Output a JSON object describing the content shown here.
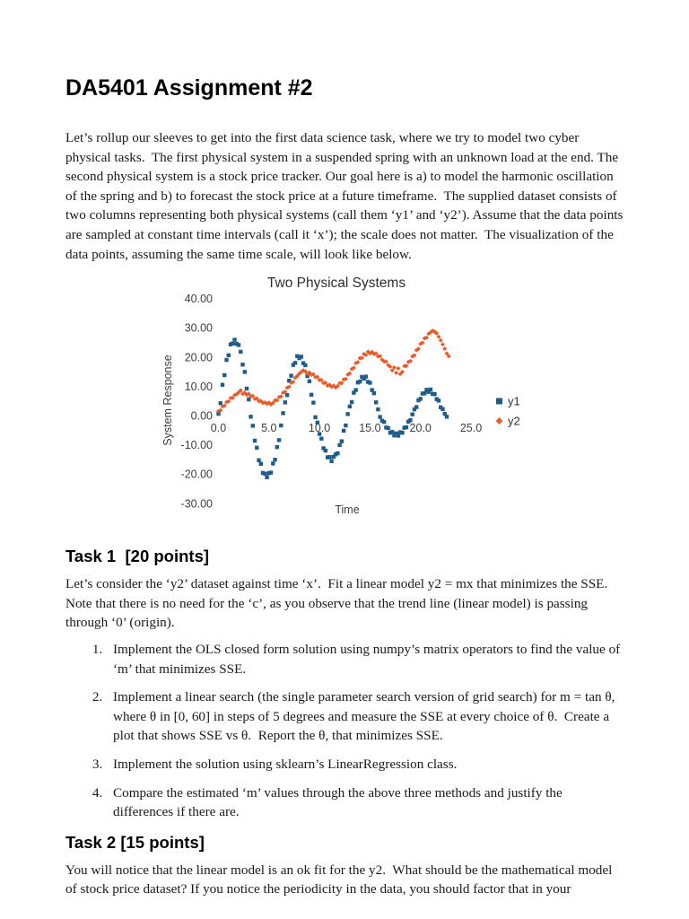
{
  "doc": {
    "title": "DA5401 Assignment #2",
    "intro": "Let’s rollup our sleeves to get into the first data science task, where we try to model two cyber physical tasks.  The first physical system in a suspended spring with an unknown load at the end. The second physical system is a stock price tracker. Our goal here is a) to model the harmonic oscillation of the spring and b) to forecast the stock price at a future timeframe.  The supplied dataset consists of two columns representing both physical systems (call them ‘y1’ and ‘y2’). Assume that the data points are sampled at constant time intervals (call it ‘x’); the scale does not matter.  The visualization of the data points, assuming the same time scale, will look like below.",
    "task1": {
      "heading": "Task 1  [20 points]",
      "intro": "Let’s consider the ‘y2’ dataset against time ‘x’.  Fit a linear model y2 = mx that minimizes the SSE. Note that there is no need for the ‘c’, as you observe that the trend line (linear model) is passing through ‘0’ (origin).",
      "items": [
        "Implement the OLS closed form solution using numpy’s matrix operators to find the value of ‘m’ that minimizes SSE.",
        "Implement a linear search (the single parameter search version of grid search) for m = tan θ, where θ in [0, 60] in steps of 5 degrees and measure the SSE at every choice of θ.  Create a plot that shows SSE vs θ.  Report the θ, that minimizes SSE.",
        "Implement the solution using sklearn’s LinearRegression class.",
        "Compare the estimated ‘m’ values through the above three methods and justify the differences if there are."
      ]
    },
    "task2": {
      "heading": "Task 2 [15 points]",
      "intro": "You will notice that the linear model is an ok fit for the y2.  What should be the mathematical model of stock price dataset? If you notice the periodicity in the data, you should factor that in your"
    }
  },
  "chart_data": {
    "type": "scatter",
    "title": "Two Physical Systems",
    "xlabel": "Time",
    "ylabel": "System Response",
    "xlim": [
      0,
      26
    ],
    "ylim": [
      -30,
      40
    ],
    "grid": false,
    "legend_position": "right",
    "x_ticks": {
      "values": [
        0,
        5,
        10,
        15,
        20,
        25
      ],
      "labels": [
        "0.0",
        "5.0",
        "10.0",
        "15.0",
        "20.0",
        "25.0"
      ]
    },
    "y_ticks": {
      "values": [
        40,
        30,
        20,
        10,
        0,
        -10,
        -20,
        -30
      ],
      "labels": [
        "40.00",
        "30.00",
        "20.00",
        "10.00",
        "0.00",
        "-10.00",
        "-20.00",
        "-30.00"
      ]
    },
    "x_start": 0,
    "x_step": 0.2,
    "series": [
      {
        "name": "y1",
        "color": "#1f5c8a",
        "marker": "square",
        "values": [
          0.6,
          4.2,
          10.5,
          13.8,
          19.0,
          20.6,
          24.3,
          24.6,
          25.9,
          24.5,
          24.1,
          21.8,
          17.4,
          14.9,
          9.2,
          5.5,
          -0.4,
          -3.5,
          -8.6,
          -11.0,
          -15.3,
          -16.5,
          -19.6,
          -19.9,
          -21.1,
          -19.7,
          -19.5,
          -16.4,
          -15.1,
          -10.8,
          -8.4,
          -3.4,
          0.8,
          4.5,
          7.0,
          11.9,
          13.6,
          17.3,
          18.0,
          20.3,
          19.6,
          20.1,
          17.9,
          17.2,
          13.5,
          11.7,
          7.1,
          4.4,
          -0.6,
          -2.4,
          -6.3,
          -7.9,
          -11.2,
          -12.0,
          -14.3,
          -14.2,
          -15.6,
          -14.1,
          -13.3,
          -12.9,
          -10.1,
          -8.8,
          -5.2,
          -3.4,
          0.5,
          3.1,
          4.6,
          7.8,
          8.7,
          11.3,
          11.6,
          13.2,
          12.6,
          13.3,
          11.5,
          11.2,
          8.7,
          7.6,
          4.5,
          2.1,
          -0.5,
          -1.8,
          -2.2,
          -4.1,
          -4.3,
          -5.9,
          -5.6,
          -6.8,
          -6.1,
          -6.9,
          -5.7,
          -5.9,
          -4.2,
          -4.0,
          -2.1,
          -1.6,
          0.4,
          2.1,
          2.9,
          5.2,
          5.7,
          7.5,
          7.6,
          8.8,
          8.1,
          8.9,
          7.4,
          7.3,
          5.6,
          5.1,
          2.8,
          2.2,
          0.6,
          -0.4
        ]
      },
      {
        "name": "y2",
        "color": "#ea5b2b",
        "marker": "diamond",
        "values": [
          1.5,
          1.8,
          3.1,
          3.4,
          4.6,
          4.8,
          6.0,
          6.0,
          7.0,
          7.3,
          7.9,
          8.6,
          7.4,
          7.8,
          7.1,
          7.4,
          6.5,
          6.7,
          5.7,
          5.8,
          4.9,
          5.0,
          4.3,
          4.5,
          4.0,
          4.4,
          3.8,
          4.3,
          5.2,
          5.2,
          6.3,
          6.5,
          7.8,
          8.1,
          9.5,
          9.8,
          11.2,
          11.5,
          12.9,
          13.5,
          14.3,
          14.9,
          15.4,
          15.1,
          14.2,
          14.7,
          13.9,
          14.1,
          13.1,
          13.2,
          12.1,
          12.1,
          11.1,
          11.2,
          10.2,
          10.5,
          9.8,
          10.2,
          9.6,
          10.1,
          11.1,
          11.1,
          12.3,
          12.5,
          14.0,
          14.4,
          15.9,
          16.3,
          17.9,
          18.2,
          19.6,
          19.7,
          21.0,
          20.7,
          21.8,
          21.2,
          21.7,
          21.0,
          21.2,
          20.2,
          20.3,
          19.1,
          18.5,
          18.4,
          17.2,
          16.7,
          15.4,
          16.4,
          14.6,
          16.1,
          14.2,
          14.9,
          16.9,
          17.0,
          18.3,
          18.6,
          20.2,
          20.6,
          22.3,
          22.8,
          24.5,
          24.9,
          26.4,
          26.6,
          27.9,
          28.4,
          29.0,
          28.7,
          28.1,
          26.9,
          25.7,
          24.3,
          22.8,
          21.2,
          20.3
        ]
      }
    ]
  }
}
